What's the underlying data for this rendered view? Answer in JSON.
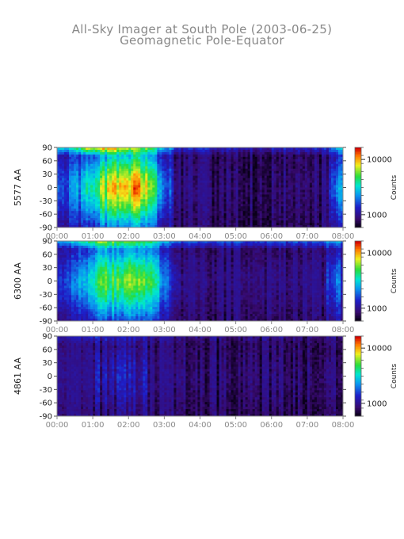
{
  "title": {
    "line1": "All-Sky Imager at South Pole (2003-06-25)",
    "line2": "Geomagnetic Pole-Equator"
  },
  "chart_data": [
    {
      "type": "heatmap",
      "ylabel": "5577 AA",
      "x_ticks": [
        "00:00",
        "01:00",
        "02:00",
        "03:00",
        "04:00",
        "05:00",
        "06:00",
        "07:00",
        "08:00"
      ],
      "xlim": [
        0,
        8
      ],
      "y_ticks": [
        90,
        60,
        30,
        0,
        -30,
        -60,
        -90
      ],
      "ylim": [
        -90,
        90
      ],
      "colorbar": {
        "label": "Counts",
        "ticks": [
          "10000",
          "1000"
        ],
        "scale": "log"
      },
      "activity_profile": [
        {
          "t": 0.0,
          "level": 0.22,
          "polar": 0.55
        },
        {
          "t": 0.4,
          "level": 0.25,
          "polar": 0.6
        },
        {
          "t": 0.85,
          "level": 0.45,
          "polar": 0.95
        },
        {
          "t": 1.2,
          "level": 0.62,
          "polar": 0.9
        },
        {
          "t": 1.5,
          "level": 0.7,
          "polar": 0.85
        },
        {
          "t": 1.9,
          "level": 0.78,
          "polar": 0.7
        },
        {
          "t": 2.3,
          "level": 0.82,
          "polar": 0.6
        },
        {
          "t": 2.7,
          "level": 0.55,
          "polar": 0.55
        },
        {
          "t": 3.1,
          "level": 0.25,
          "polar": 0.45
        },
        {
          "t": 3.4,
          "level": 0.05,
          "polar": 0.3
        },
        {
          "t": 5.5,
          "level": 0.02,
          "polar": 0.25
        },
        {
          "t": 7.6,
          "level": 0.05,
          "polar": 0.3
        },
        {
          "t": 7.8,
          "level": 0.35,
          "polar": 0.45
        },
        {
          "t": 8.0,
          "level": 0.3,
          "polar": 0.45
        }
      ]
    },
    {
      "type": "heatmap",
      "ylabel": "6300 AA",
      "x_ticks": [
        "00:00",
        "01:00",
        "02:00",
        "03:00",
        "04:00",
        "05:00",
        "06:00",
        "07:00",
        "08:00"
      ],
      "xlim": [
        0,
        8
      ],
      "y_ticks": [
        90,
        60,
        30,
        0,
        -30,
        -60,
        -90
      ],
      "ylim": [
        -90,
        90
      ],
      "colorbar": {
        "label": "Counts",
        "ticks": [
          "10000",
          "1000"
        ],
        "scale": "log"
      },
      "activity_profile": [
        {
          "t": 0.0,
          "level": 0.25,
          "polar": 0.5
        },
        {
          "t": 0.5,
          "level": 0.3,
          "polar": 0.55
        },
        {
          "t": 0.9,
          "level": 0.45,
          "polar": 0.7
        },
        {
          "t": 1.3,
          "level": 0.55,
          "polar": 0.7
        },
        {
          "t": 1.8,
          "level": 0.62,
          "polar": 0.65
        },
        {
          "t": 2.3,
          "level": 0.65,
          "polar": 0.6
        },
        {
          "t": 2.8,
          "level": 0.45,
          "polar": 0.5
        },
        {
          "t": 3.2,
          "level": 0.2,
          "polar": 0.45
        },
        {
          "t": 3.5,
          "level": 0.1,
          "polar": 0.4
        },
        {
          "t": 5.5,
          "level": 0.08,
          "polar": 0.4
        },
        {
          "t": 7.5,
          "level": 0.1,
          "polar": 0.4
        },
        {
          "t": 7.8,
          "level": 0.3,
          "polar": 0.45
        },
        {
          "t": 8.0,
          "level": 0.2,
          "polar": 0.4
        }
      ]
    },
    {
      "type": "heatmap",
      "ylabel": "4861 AA",
      "x_ticks": [
        "00:00",
        "01:00",
        "02:00",
        "03:00",
        "04:00",
        "05:00",
        "06:00",
        "07:00",
        "08:00"
      ],
      "xlim": [
        0,
        8
      ],
      "y_ticks": [
        90,
        60,
        30,
        0,
        -30,
        -60,
        -90
      ],
      "ylim": [
        -90,
        90
      ],
      "colorbar": {
        "label": "Counts",
        "ticks": [
          "10000",
          "1000"
        ],
        "scale": "log"
      },
      "activity_profile": [
        {
          "t": 0.0,
          "level": 0.06,
          "polar": 0.12
        },
        {
          "t": 1.0,
          "level": 0.1,
          "polar": 0.2
        },
        {
          "t": 2.0,
          "level": 0.12,
          "polar": 0.15
        },
        {
          "t": 3.0,
          "level": 0.08,
          "polar": 0.12
        },
        {
          "t": 4.0,
          "level": 0.03,
          "polar": 0.1
        },
        {
          "t": 6.0,
          "level": 0.03,
          "polar": 0.1
        },
        {
          "t": 8.0,
          "level": 0.04,
          "polar": 0.1
        }
      ]
    }
  ]
}
